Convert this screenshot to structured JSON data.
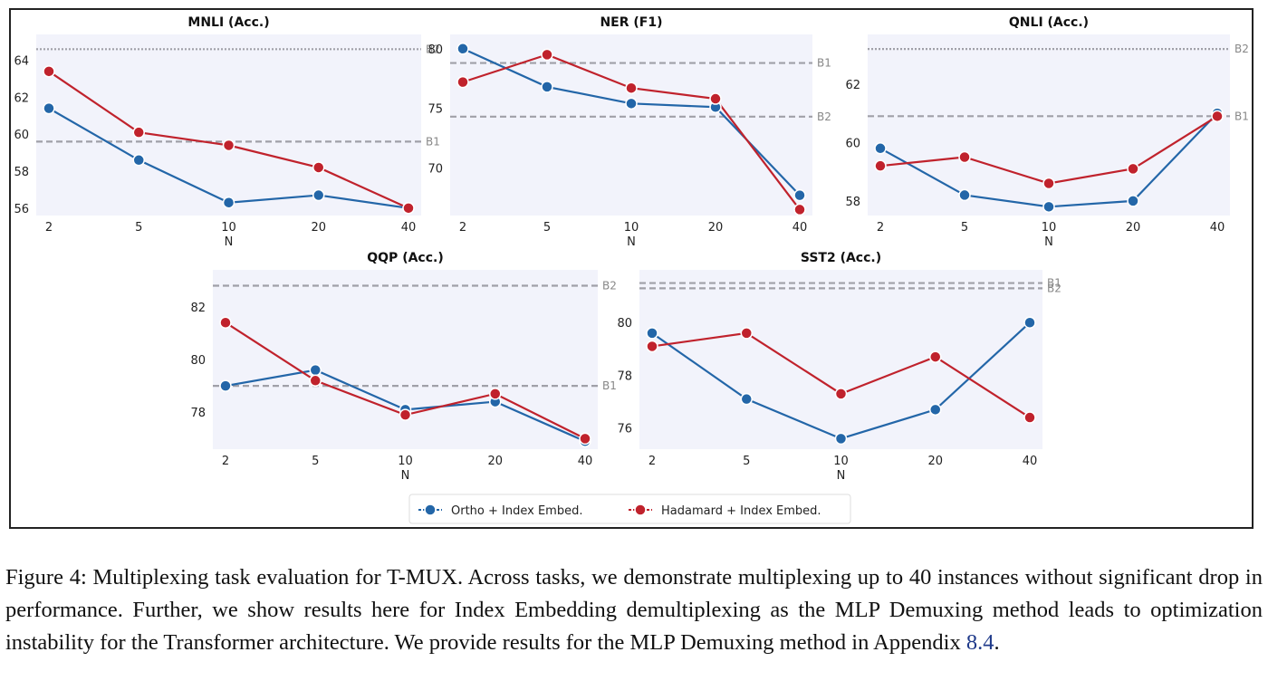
{
  "chart_data": [
    {
      "type": "line",
      "title": "MNLI (Acc.)",
      "xlabel": "N",
      "x": [
        2,
        5,
        10,
        20,
        40
      ],
      "xticks": [
        "2",
        "5",
        "10",
        "20",
        "40"
      ],
      "ylim": [
        55.6,
        65.4
      ],
      "yticks": [
        56,
        58,
        60,
        62,
        64
      ],
      "series": [
        {
          "name": "Ortho + Index Embed.",
          "values": [
            61.4,
            58.6,
            56.3,
            56.7,
            56.0
          ]
        },
        {
          "name": "Hadamard + Index Embed.",
          "values": [
            63.4,
            60.1,
            59.4,
            58.2,
            56.0
          ]
        }
      ],
      "baselines": [
        {
          "label": "B2",
          "value": 64.6,
          "style": "dotted"
        },
        {
          "label": "B1",
          "value": 59.6,
          "style": "dashed"
        }
      ]
    },
    {
      "type": "line",
      "title": "NER (F1)",
      "xlabel": "N",
      "x": [
        2,
        5,
        10,
        20,
        40
      ],
      "xticks": [
        "2",
        "5",
        "10",
        "20",
        "40"
      ],
      "ylim": [
        66.0,
        81.2
      ],
      "yticks": [
        70,
        75,
        80
      ],
      "series": [
        {
          "name": "Ortho + Index Embed.",
          "values": [
            80.0,
            76.8,
            75.4,
            75.1,
            67.7
          ]
        },
        {
          "name": "Hadamard + Index Embed.",
          "values": [
            77.2,
            79.5,
            76.7,
            75.8,
            66.5
          ]
        }
      ],
      "baselines": [
        {
          "label": "B1",
          "value": 78.8,
          "style": "dashed"
        },
        {
          "label": "B2",
          "value": 74.3,
          "style": "dashed"
        }
      ]
    },
    {
      "type": "line",
      "title": "QNLI (Acc.)",
      "xlabel": "N",
      "x": [
        2,
        5,
        10,
        20,
        40
      ],
      "xticks": [
        "2",
        "5",
        "10",
        "20",
        "40"
      ],
      "ylim": [
        57.5,
        63.7
      ],
      "yticks": [
        58,
        60,
        62
      ],
      "series": [
        {
          "name": "Ortho + Index Embed.",
          "values": [
            59.8,
            58.2,
            57.8,
            58.0,
            61.0
          ]
        },
        {
          "name": "Hadamard + Index Embed.",
          "values": [
            59.2,
            59.5,
            58.6,
            59.1,
            60.9
          ]
        }
      ],
      "baselines": [
        {
          "label": "B2",
          "value": 63.2,
          "style": "dotted"
        },
        {
          "label": "B1",
          "value": 60.9,
          "style": "dashed"
        }
      ]
    },
    {
      "type": "line",
      "title": "QQP (Acc.)",
      "xlabel": "N",
      "x": [
        2,
        5,
        10,
        20,
        40
      ],
      "xticks": [
        "2",
        "5",
        "10",
        "20",
        "40"
      ],
      "ylim": [
        76.6,
        83.4
      ],
      "yticks": [
        78,
        80,
        82
      ],
      "series": [
        {
          "name": "Ortho + Index Embed.",
          "values": [
            79.0,
            79.6,
            78.1,
            78.4,
            76.9
          ]
        },
        {
          "name": "Hadamard + Index Embed.",
          "values": [
            81.4,
            79.2,
            77.9,
            78.7,
            77.0
          ]
        }
      ],
      "baselines": [
        {
          "label": "B2",
          "value": 82.8,
          "style": "dashed"
        },
        {
          "label": "B1",
          "value": 79.0,
          "style": "dashed"
        }
      ]
    },
    {
      "type": "line",
      "title": "SST2 (Acc.)",
      "xlabel": "N",
      "x": [
        2,
        5,
        10,
        20,
        40
      ],
      "xticks": [
        "2",
        "5",
        "10",
        "20",
        "40"
      ],
      "ylim": [
        75.2,
        82.0
      ],
      "yticks": [
        76,
        78,
        80
      ],
      "series": [
        {
          "name": "Ortho + Index Embed.",
          "values": [
            79.6,
            77.1,
            75.6,
            76.7,
            80.0
          ]
        },
        {
          "name": "Hadamard + Index Embed.",
          "values": [
            79.1,
            79.6,
            77.3,
            78.7,
            76.4
          ]
        }
      ],
      "baselines": [
        {
          "label": "B1",
          "value": 81.5,
          "style": "dashed"
        },
        {
          "label": "B2",
          "value": 81.3,
          "style": "dashed"
        }
      ]
    }
  ],
  "legend": {
    "items": [
      {
        "label": "Ortho + Index Embed.",
        "color": "#2366a8"
      },
      {
        "label": "Hadamard + Index Embed.",
        "color": "#c0222c"
      }
    ]
  },
  "colors": {
    "ortho": "#2366a8",
    "hadamard": "#c0222c",
    "baseline": "#a0a0a8",
    "panel_bg": "#f2f3fb"
  },
  "caption": {
    "label": "Figure 4:",
    "text_1": " Multiplexing task evaluation for T-MUX. Across tasks, we demonstrate multiplexing up to ",
    "num_1": "40",
    "text_2": " instances without significant drop in performance. Further, we show results here for Index Embedding demultiplexing as the MLP Demuxing method leads to optimization instability for the Transformer architecture. We provide results for the MLP Demuxing method in Appendix ",
    "ref": "8.4",
    "text_3": "."
  }
}
